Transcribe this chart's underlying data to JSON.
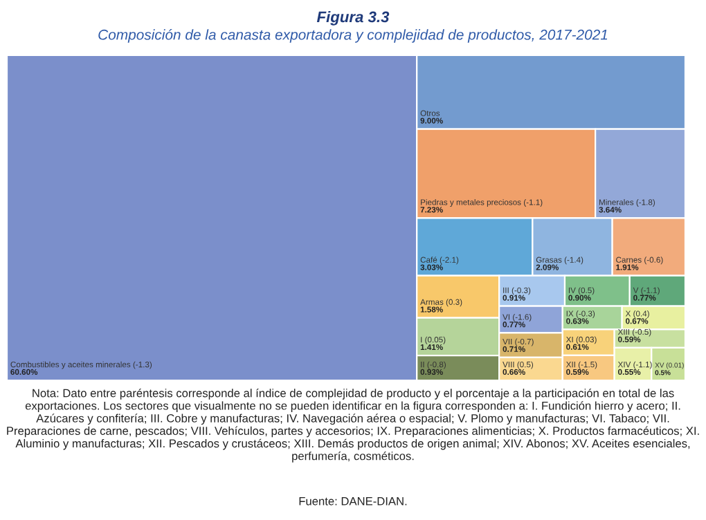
{
  "chart_data": {
    "type": "other",
    "title": "Figura 3.3",
    "subtitle": "Composición de la canasta exportadora y complejidad de productos, 2017-2021",
    "categories": [
      "Combustibles y aceites minerales (-1.3)",
      "Otros",
      "Piedras y metales preciosos (-1.1)",
      "Minerales (-1.8)",
      "Café (-2.1)",
      "Grasas (-1.4)",
      "Carnes (-0.6)",
      "Armas (0.3)",
      "I (0.05)",
      "II (-0.8)",
      "III (-0.3)",
      "IV (0.5)",
      "V (-1.1)",
      "VI (-1.6)",
      "VII (-0.7)",
      "VIII (0.5)",
      "IX (-0.3)",
      "X (0.4)",
      "XI (0.03)",
      "XII (-1.5)",
      "XIII (-0.5)",
      "XIV (-1.1)",
      "XV (0.01)"
    ],
    "values": [
      60.6,
      9.0,
      7.23,
      3.64,
      3.03,
      2.09,
      1.91,
      1.58,
      1.41,
      0.93,
      0.91,
      0.9,
      0.77,
      0.77,
      0.71,
      0.66,
      0.63,
      0.67,
      0.61,
      0.59,
      0.59,
      0.55,
      0.5
    ],
    "value_labels": [
      "60.60%",
      "9.00%",
      "7.23%",
      "3.64%",
      "3.03%",
      "2.09%",
      "1.91%",
      "1.58%",
      "1.41%",
      "0.93%",
      "0.91%",
      "0.90%",
      "0.77%",
      "0.77%",
      "0.71%",
      "0.66%",
      "0.63%",
      "0.67%",
      "0.61%",
      "0.59%",
      "0.59%",
      "0.55%",
      "0.5%"
    ],
    "colors": [
      "#7b8fcb",
      "#739bcf",
      "#f0a06a",
      "#93a8d8",
      "#5fa8d8",
      "#8fb5e0",
      "#f2ab7c",
      "#f8c86a",
      "#b5d49a",
      "#7a8c5a",
      "#a8c8ee",
      "#7fc08a",
      "#5fa87a",
      "#8fa4d8",
      "#d8b56a",
      "#fad890",
      "#a8d49a",
      "#e8f0a0",
      "#f8d27a",
      "#f8c880",
      "#c8e0a0",
      "#e8f0a8",
      "#c8e098"
    ],
    "annotations": [
      "Nota: Dato entre paréntesis corresponde al índice de complejidad de producto y el porcentaje a la participación en total de las exportaciones. Los sectores que visualmente no se pueden identificar en la figura corresponden a: I. Fundición hierro y acero; II. Azúcares y confitería; III. Cobre y manufacturas; IV. Navegación aérea o espacial; V. Plomo y manufacturas; VI. Tabaco; VII. Preparaciones de carne, pescados; VIII. Vehículos, partes y accesorios; IX. Preparaciones alimenticias; X. Productos farmacéuticos; XI. Aluminio y manufacturas; XII. Pescados y crustáceos; XIII. Demás productos de origen animal; XIV. Abonos; XV. Aceites esenciales, perfumería, cosméticos.",
      "Fuente: DANE-DIAN."
    ]
  }
}
